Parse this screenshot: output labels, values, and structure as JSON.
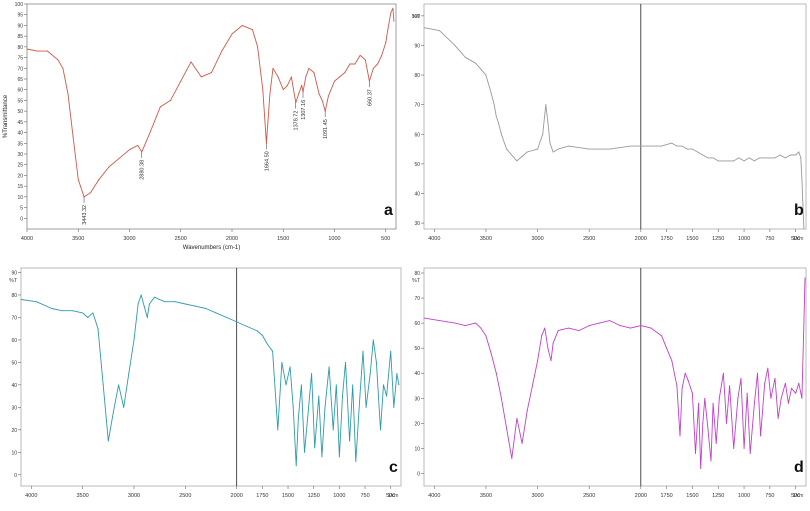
{
  "chart_data": [
    {
      "type": "line",
      "panel_letter": "a",
      "xlabel": "Wavenumbers (cm-1)",
      "ylabel": "%Transmittance",
      "xlim": [
        4000,
        400
      ],
      "ylim": [
        -5,
        100
      ],
      "x_ticks": [
        4000,
        3500,
        3000,
        2500,
        2000,
        1500,
        1000,
        500
      ],
      "y_ticks": [
        0,
        5,
        10,
        15,
        20,
        25,
        30,
        35,
        40,
        45,
        50,
        55,
        60,
        65,
        70,
        75,
        80,
        85,
        90,
        95,
        100
      ],
      "color": "#d0584a",
      "annotations": [
        {
          "x": 3443.32,
          "y": 10,
          "text": "3443.32"
        },
        {
          "x": 2880.38,
          "y": 31,
          "text": "2880.38"
        },
        {
          "x": 1664.5,
          "y": 35,
          "text": "1664.50"
        },
        {
          "x": 1378.72,
          "y": 54,
          "text": "1378.72"
        },
        {
          "x": 1307.16,
          "y": 59,
          "text": "1307.16"
        },
        {
          "x": 1091.45,
          "y": 50,
          "text": "1091.45"
        },
        {
          "x": 660.37,
          "y": 64,
          "text": "660.37"
        }
      ],
      "series": [
        {
          "x": [
            4000,
            3900,
            3800,
            3700,
            3650,
            3600,
            3550,
            3500,
            3443,
            3380,
            3300,
            3200,
            3100,
            3000,
            2920,
            2880,
            2800,
            2700,
            2600,
            2500,
            2400,
            2300,
            2200,
            2100,
            2000,
            1900,
            1800,
            1750,
            1700,
            1664,
            1630,
            1600,
            1550,
            1500,
            1460,
            1420,
            1400,
            1378,
            1350,
            1320,
            1307,
            1280,
            1250,
            1200,
            1150,
            1120,
            1091,
            1060,
            1000,
            950,
            900,
            850,
            800,
            750,
            700,
            660,
            620,
            580,
            540,
            500,
            480,
            450,
            430,
            420
          ],
          "y": [
            79,
            78,
            78,
            74,
            70,
            58,
            38,
            18,
            10,
            12,
            18,
            24,
            28,
            32,
            34,
            31,
            40,
            52,
            55,
            64,
            73,
            66,
            68,
            78,
            86,
            90,
            88,
            80,
            60,
            35,
            58,
            70,
            66,
            60,
            62,
            66,
            60,
            54,
            58,
            62,
            59,
            66,
            70,
            68,
            58,
            55,
            50,
            57,
            64,
            66,
            68,
            72,
            72,
            76,
            74,
            64,
            70,
            72,
            76,
            82,
            88,
            96,
            98,
            92
          ]
        }
      ]
    },
    {
      "type": "line",
      "panel_letter": "b",
      "y_unit": "%T",
      "x_unit_label": "1/cm",
      "xlim": [
        4100,
        400
      ],
      "ylim": [
        28,
        104
      ],
      "x_ticks": [
        4000,
        3500,
        3000,
        2500,
        2000,
        1750,
        1500,
        1250,
        1000,
        750,
        500
      ],
      "y_ticks": [
        30,
        40,
        50,
        60,
        70,
        80,
        90,
        100
      ],
      "color": "#9a9a9a",
      "series": [
        {
          "x": [
            4100,
            3950,
            3800,
            3700,
            3600,
            3550,
            3500,
            3450,
            3420,
            3400,
            3380,
            3350,
            3300,
            3200,
            3100,
            3000,
            2950,
            2920,
            2900,
            2880,
            2850,
            2800,
            2700,
            2500,
            2300,
            2100,
            2000,
            1900,
            1800,
            1700,
            1650,
            1600,
            1550,
            1500,
            1450,
            1400,
            1350,
            1300,
            1250,
            1200,
            1150,
            1100,
            1050,
            1000,
            950,
            900,
            850,
            800,
            750,
            700,
            650,
            600,
            550,
            500,
            470,
            450,
            440,
            430,
            420
          ],
          "y": [
            96,
            95,
            90,
            86,
            84,
            82,
            80,
            74,
            70,
            66,
            64,
            60,
            55,
            51,
            54,
            55,
            60,
            70,
            64,
            57,
            54,
            55,
            56,
            55,
            55,
            56,
            56,
            56,
            56,
            57,
            56,
            56,
            55,
            55,
            54,
            53,
            52,
            52,
            51,
            51,
            51,
            51,
            52,
            51,
            52,
            51,
            52,
            52,
            52,
            52,
            53,
            52,
            53,
            53,
            54,
            52,
            45,
            36,
            28
          ]
        }
      ]
    },
    {
      "type": "line",
      "panel_letter": "c",
      "y_unit": "%T",
      "x_unit_label": "1/cm",
      "xlim": [
        4100,
        400
      ],
      "ylim": [
        -5,
        92
      ],
      "x_ticks": [
        4000,
        3500,
        3000,
        2500,
        2000,
        1750,
        1500,
        1250,
        1000,
        750,
        500
      ],
      "y_ticks": [
        0,
        10,
        20,
        30,
        40,
        50,
        60,
        70,
        80,
        90
      ],
      "color": "#2e9bab",
      "series": [
        {
          "x": [
            4100,
            3950,
            3800,
            3700,
            3600,
            3500,
            3450,
            3400,
            3350,
            3300,
            3250,
            3200,
            3150,
            3100,
            3050,
            3000,
            2960,
            2930,
            2900,
            2870,
            2850,
            2800,
            2750,
            2700,
            2600,
            2500,
            2400,
            2300,
            2200,
            2100,
            2000,
            1900,
            1800,
            1750,
            1700,
            1650,
            1600,
            1560,
            1520,
            1480,
            1450,
            1420,
            1400,
            1370,
            1340,
            1300,
            1270,
            1240,
            1200,
            1170,
            1140,
            1100,
            1060,
            1030,
            1000,
            970,
            940,
            900,
            870,
            840,
            800,
            770,
            740,
            700,
            670,
            640,
            600,
            570,
            540,
            500,
            470,
            440,
            420
          ],
          "y": [
            78,
            77,
            74,
            73,
            73,
            72,
            70,
            72,
            65,
            40,
            15,
            28,
            40,
            30,
            45,
            60,
            76,
            80,
            75,
            70,
            76,
            79,
            78,
            77,
            77,
            76,
            75,
            74,
            72,
            70,
            68,
            66,
            64,
            62,
            58,
            55,
            20,
            50,
            40,
            48,
            30,
            4,
            25,
            40,
            10,
            30,
            45,
            12,
            35,
            8,
            30,
            48,
            20,
            40,
            8,
            35,
            50,
            15,
            40,
            6,
            35,
            55,
            30,
            45,
            60,
            50,
            20,
            40,
            35,
            55,
            30,
            45,
            40
          ]
        }
      ]
    },
    {
      "type": "line",
      "panel_letter": "d",
      "y_unit": "%T",
      "x_unit_label": "1/cm",
      "xlim": [
        4100,
        400
      ],
      "ylim": [
        -5,
        82
      ],
      "x_ticks": [
        4000,
        3500,
        3000,
        2500,
        2000,
        1750,
        1500,
        1250,
        1000,
        750,
        500
      ],
      "y_ticks": [
        0,
        10,
        20,
        30,
        40,
        50,
        60,
        70,
        80
      ],
      "color": "#c040c8",
      "series": [
        {
          "x": [
            4100,
            3950,
            3800,
            3700,
            3600,
            3550,
            3500,
            3450,
            3400,
            3350,
            3300,
            3250,
            3200,
            3150,
            3100,
            3050,
            3000,
            2960,
            2930,
            2900,
            2870,
            2850,
            2800,
            2700,
            2600,
            2500,
            2400,
            2300,
            2200,
            2100,
            2000,
            1900,
            1800,
            1750,
            1700,
            1650,
            1620,
            1600,
            1570,
            1540,
            1500,
            1470,
            1440,
            1420,
            1400,
            1380,
            1350,
            1320,
            1300,
            1270,
            1240,
            1200,
            1170,
            1140,
            1100,
            1060,
            1030,
            1000,
            970,
            940,
            900,
            870,
            840,
            800,
            770,
            740,
            700,
            670,
            640,
            600,
            570,
            540,
            500,
            470,
            440,
            420,
            410
          ],
          "y": [
            62,
            61,
            60,
            59,
            60,
            58,
            55,
            48,
            40,
            30,
            18,
            6,
            22,
            12,
            25,
            35,
            45,
            55,
            58,
            50,
            45,
            52,
            57,
            58,
            57,
            59,
            60,
            61,
            59,
            58,
            59,
            58,
            55,
            50,
            45,
            35,
            15,
            34,
            40,
            37,
            32,
            8,
            28,
            2,
            20,
            30,
            18,
            5,
            28,
            12,
            30,
            40,
            20,
            35,
            10,
            30,
            38,
            10,
            32,
            8,
            28,
            40,
            15,
            36,
            42,
            30,
            38,
            22,
            30,
            36,
            28,
            34,
            32,
            36,
            30,
            60,
            78
          ]
        }
      ]
    }
  ]
}
